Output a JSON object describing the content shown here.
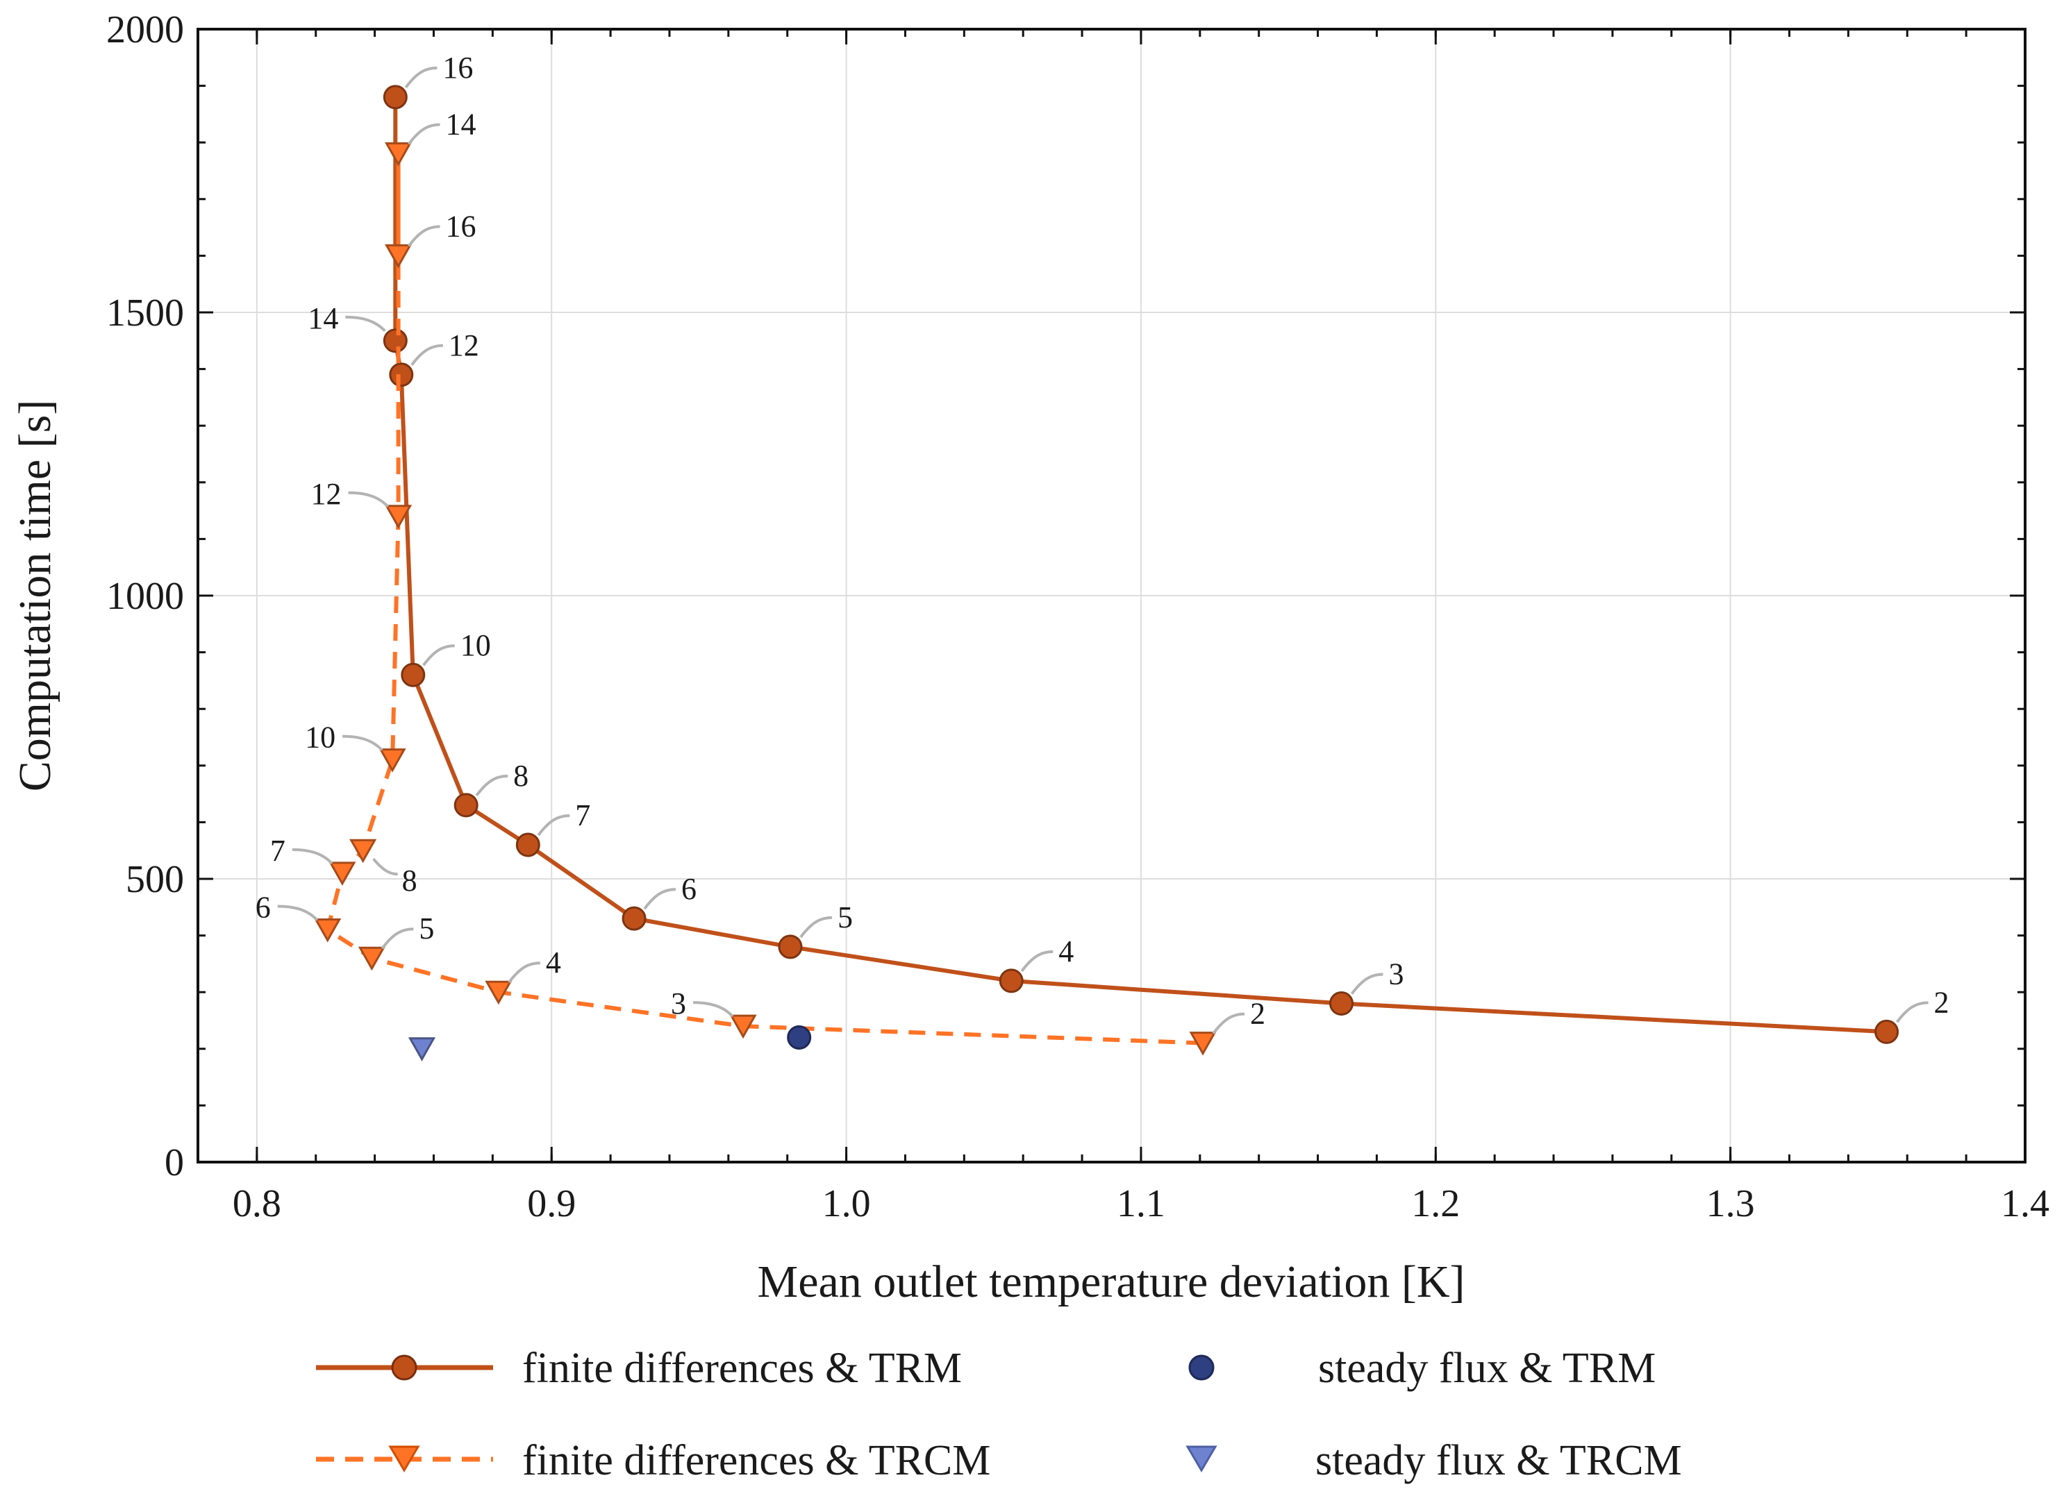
{
  "chart_data": {
    "type": "line",
    "title": "",
    "xlabel": "Mean outlet temperature deviation [K]",
    "ylabel": "Computation time [s]",
    "xlim": [
      0.78,
      1.4
    ],
    "ylim": [
      0,
      2000
    ],
    "xticks": [
      0.8,
      0.9,
      1.0,
      1.1,
      1.2,
      1.3,
      1.4
    ],
    "xtick_labels": [
      "0.8",
      "0.9",
      "1.0",
      "1.1",
      "1.2",
      "1.3",
      "1.4"
    ],
    "yticks": [
      0,
      500,
      1000,
      1500,
      2000
    ],
    "ytick_labels": [
      "0",
      "500",
      "1000",
      "1500",
      "2000"
    ],
    "grid": true,
    "legend_position": "bottom",
    "series": [
      {
        "name": "finite differences & TRM",
        "style": "solid",
        "marker": "circle",
        "color": "#c0501a",
        "points": [
          {
            "x": 1.353,
            "y": 230,
            "label": "2",
            "label_side": "right"
          },
          {
            "x": 1.168,
            "y": 280,
            "label": "3",
            "label_side": "right"
          },
          {
            "x": 1.056,
            "y": 320,
            "label": "4",
            "label_side": "right"
          },
          {
            "x": 0.981,
            "y": 380,
            "label": "5",
            "label_side": "right"
          },
          {
            "x": 0.928,
            "y": 430,
            "label": "6",
            "label_side": "right"
          },
          {
            "x": 0.892,
            "y": 560,
            "label": "7",
            "label_side": "right"
          },
          {
            "x": 0.871,
            "y": 630,
            "label": "8",
            "label_side": "right"
          },
          {
            "x": 0.853,
            "y": 860,
            "label": "10",
            "label_side": "right"
          },
          {
            "x": 0.849,
            "y": 1390,
            "label": "12",
            "label_side": "right"
          },
          {
            "x": 0.847,
            "y": 1450,
            "label": "14",
            "label_side": "left"
          },
          {
            "x": 0.847,
            "y": 1880,
            "label": "16",
            "label_side": "right"
          }
        ]
      },
      {
        "name": "finite differences & TRCM",
        "style": "dashed",
        "marker": "triangle-down",
        "color": "#ff7326",
        "points": [
          {
            "x": 1.121,
            "y": 210,
            "label": "2",
            "label_side": "right"
          },
          {
            "x": 0.965,
            "y": 240,
            "label": "3",
            "label_side": "left"
          },
          {
            "x": 0.882,
            "y": 300,
            "label": "4",
            "label_side": "right"
          },
          {
            "x": 0.839,
            "y": 360,
            "label": "5",
            "label_side": "right"
          },
          {
            "x": 0.824,
            "y": 410,
            "label": "6",
            "label_side": "left"
          },
          {
            "x": 0.829,
            "y": 510,
            "label": "7",
            "label_side": "left"
          },
          {
            "x": 0.836,
            "y": 550,
            "label": "8",
            "label_side": "right-below"
          },
          {
            "x": 0.846,
            "y": 710,
            "label": "10",
            "label_side": "left"
          },
          {
            "x": 0.848,
            "y": 1140,
            "label": "12",
            "label_side": "left"
          },
          {
            "x": 0.848,
            "y": 1780,
            "label": "14",
            "label_side": "right"
          },
          {
            "x": 0.848,
            "y": 1600,
            "label": "16",
            "label_side": "right"
          }
        ]
      },
      {
        "name": "steady flux & TRM",
        "style": "none",
        "marker": "circle",
        "color": "#2e3f82",
        "points": [
          {
            "x": 0.984,
            "y": 220
          }
        ]
      },
      {
        "name": "steady flux & TRCM",
        "style": "none",
        "marker": "triangle-down",
        "color": "#6f82cf",
        "points": [
          {
            "x": 0.856,
            "y": 200
          }
        ]
      }
    ]
  },
  "legend": {
    "items": [
      {
        "label": "finite differences & TRM"
      },
      {
        "label": "steady flux & TRM"
      },
      {
        "label": "finite differences & TRCM"
      },
      {
        "label": "steady flux & TRCM"
      }
    ]
  }
}
